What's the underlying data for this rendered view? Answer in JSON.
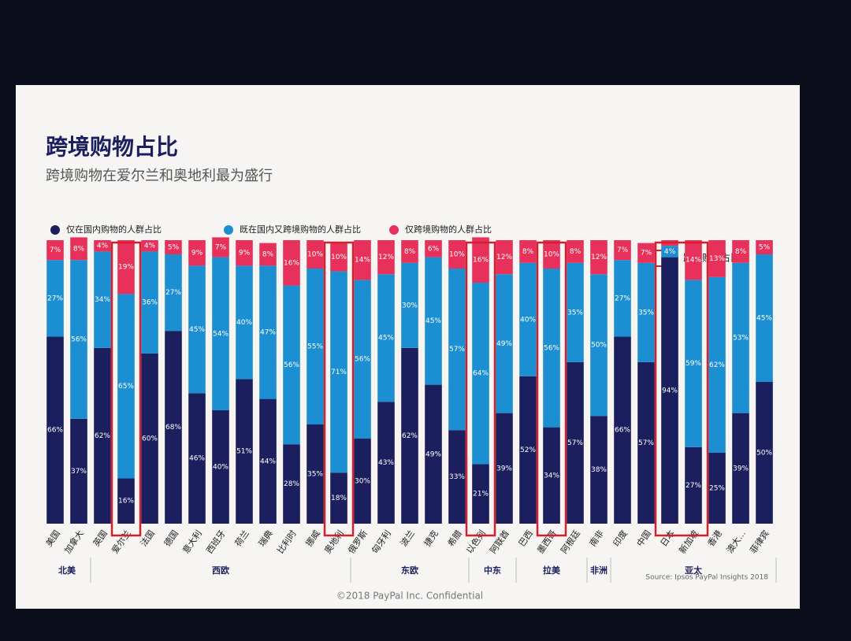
{
  "chart_data": {
    "type": "bar",
    "stacked": true,
    "title": "跨境购物占比",
    "subtitle": "跨境购物在爱尔兰和奥地利最为盛行",
    "categories": [
      "美国",
      "加拿大",
      "英国",
      "爱尔兰",
      "法国",
      "德国",
      "意大利",
      "西班牙",
      "荷兰",
      "瑞典",
      "比利时",
      "挪威",
      "奥地利",
      "俄罗斯",
      "匈牙利",
      "波兰",
      "捷克",
      "希腊",
      "以色列",
      "阿联酋",
      "巴西",
      "墨西哥",
      "阿根廷",
      "南非",
      "印度",
      "中国",
      "日本",
      "新加坡",
      "香港",
      "澳大...",
      "菲律宾"
    ],
    "groups": [
      {
        "name": "北美",
        "count": 2
      },
      {
        "name": "西欧",
        "count": 11
      },
      {
        "name": "东欧",
        "count": 5
      },
      {
        "name": "中东",
        "count": 2
      },
      {
        "name": "拉美",
        "count": 3
      },
      {
        "name": "非洲",
        "count": 1
      },
      {
        "name": "亚太",
        "count": 7
      }
    ],
    "series": [
      {
        "name": "仅在国内购物的人群占比",
        "color": "#1c1f5e",
        "values": [
          66,
          37,
          62,
          16,
          60,
          68,
          46,
          40,
          51,
          44,
          28,
          35,
          18,
          30,
          43,
          62,
          49,
          33,
          21,
          39,
          52,
          34,
          57,
          38,
          66,
          57,
          94,
          27,
          25,
          39,
          50
        ],
        "value_labels": [
          "66%",
          "37%",
          "62%",
          "16%",
          "60%",
          "68%",
          "46%",
          "40%",
          "51%",
          "44%",
          "28%",
          "35%",
          "18%",
          "30%",
          "43%",
          "62%",
          "49%",
          "33%",
          "21%",
          "39%",
          "52%",
          "34%",
          "57%",
          "38%",
          "66%",
          "57%",
          "94%",
          "27%",
          "25%",
          "39%",
          "50%"
        ]
      },
      {
        "name": "既在国内又跨境购物的人群占比",
        "color": "#1b8fd2",
        "values": [
          27,
          56,
          34,
          65,
          36,
          27,
          45,
          54,
          40,
          47,
          56,
          55,
          71,
          56,
          45,
          30,
          45,
          57,
          64,
          49,
          40,
          56,
          35,
          50,
          27,
          35,
          4,
          59,
          62,
          53,
          45
        ],
        "value_labels": [
          "27%",
          "56%",
          "34%",
          "65%",
          "36%",
          "27%",
          "45%",
          "54%",
          "40%",
          "47%",
          "56%",
          "55%",
          "71%",
          "56%",
          "45%",
          "30%",
          "45%",
          "57%",
          "64%",
          "49%",
          "40%",
          "56%",
          "35%",
          "50%",
          "27%",
          "35%",
          "4%",
          "59%",
          "62%",
          "53%",
          "45%"
        ]
      },
      {
        "name": "仅跨境购物的人群占比",
        "color": "#e8315a",
        "values": [
          7,
          8,
          4,
          19,
          4,
          5,
          9,
          7,
          9,
          8,
          16,
          10,
          10,
          14,
          12,
          8,
          6,
          10,
          16,
          12,
          8,
          10,
          8,
          12,
          7,
          7,
          2,
          14,
          13,
          8,
          5
        ],
        "value_labels": [
          "7%",
          "8%",
          "4%",
          "19%",
          "4%",
          "5%",
          "9%",
          "7%",
          "9%",
          "8%",
          "16%",
          "10%",
          "10%",
          "14%",
          "12%",
          "8%",
          "6%",
          "10%",
          "16%",
          "12%",
          "8%",
          "10%",
          "8%",
          "12%",
          "7%",
          "7%",
          null,
          "14%",
          "13%",
          "8%",
          "5%"
        ]
      }
    ],
    "ylim": [
      0,
      100
    ],
    "highlight": [
      3,
      12,
      18,
      21,
      26,
      27
    ],
    "highlight_label": "跨境购物占比高",
    "source": "Source: Ipsos PayPal Insights 2018",
    "footer": "©2018 PayPal Inc. Confidential"
  }
}
